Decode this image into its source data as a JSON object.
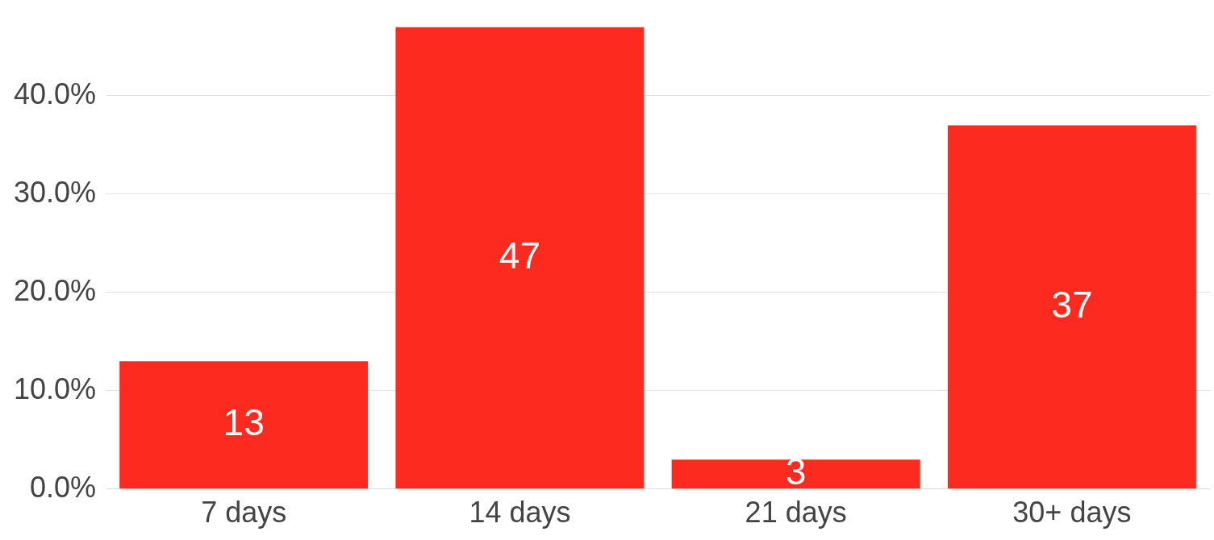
{
  "chart_data": {
    "type": "bar",
    "categories": [
      "7 days",
      "14 days",
      "21 days",
      "30+ days"
    ],
    "values": [
      13,
      47,
      3,
      37
    ],
    "color": "#fc2a1f",
    "ylim": [
      0,
      47
    ],
    "yticks": [
      {
        "value": 0,
        "label": "0.0%"
      },
      {
        "value": 10,
        "label": "10.0%"
      },
      {
        "value": 20,
        "label": "20.0%"
      },
      {
        "value": 30,
        "label": "30.0%"
      },
      {
        "value": 40,
        "label": "40.0%"
      }
    ],
    "grid": "y",
    "data_labels": true,
    "legend": false
  }
}
